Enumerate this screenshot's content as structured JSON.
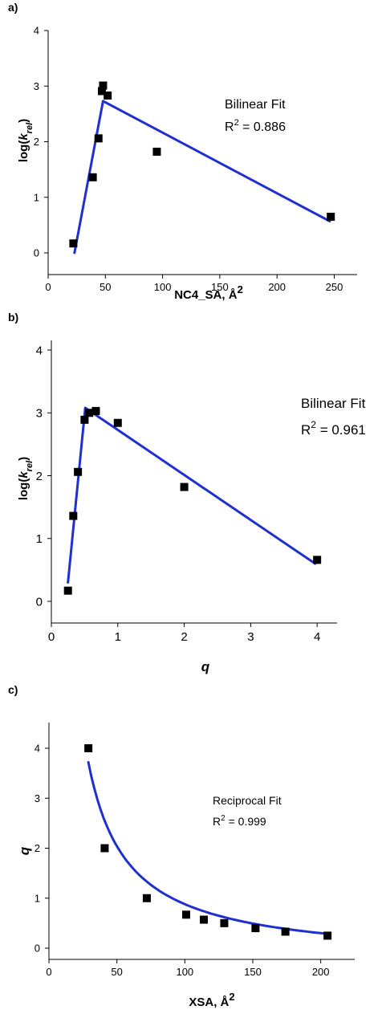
{
  "panels": [
    {
      "label": "a)",
      "annotation": {
        "title": "Bilinear Fit",
        "r2_prefix": "R",
        "r2_exp": "2",
        "r2_value": " = 0.886"
      },
      "xlabel": {
        "text": "NC4_SA, Å",
        "sup": "2"
      },
      "ylabel": {
        "prefix": "log(",
        "k": "k",
        "sub": "rel",
        "suffix": ")"
      }
    },
    {
      "label": "b)",
      "annotation": {
        "title": "Bilinear Fit",
        "r2_prefix": "R",
        "r2_exp": "2",
        "r2_value": " = 0.961"
      },
      "xlabel": {
        "text": "q",
        "sup": ""
      },
      "ylabel": {
        "prefix": "log(",
        "k": "k",
        "sub": "rel",
        "suffix": ")"
      }
    },
    {
      "label": "c)",
      "annotation": {
        "title": "Reciprocal Fit",
        "r2_prefix": "R",
        "r2_exp": "2",
        "r2_value": " = 0.999"
      },
      "xlabel": {
        "text": "XSA, Å",
        "sup": "2"
      },
      "ylabel": {
        "prefix": "",
        "k": "q",
        "sub": "",
        "suffix": ""
      }
    }
  ],
  "colors": {
    "fit_line": "#1f2fd0",
    "points": "#000000",
    "axis": "#000000"
  },
  "chart_data": [
    {
      "type": "scatter",
      "xlim": [
        0,
        270
      ],
      "ylim": [
        0,
        4
      ],
      "xticks": [
        0,
        50,
        100,
        150,
        200,
        250
      ],
      "yticks": [
        0,
        1,
        2,
        3,
        4
      ],
      "points": [
        [
          22,
          0.17
        ],
        [
          39,
          1.36
        ],
        [
          44,
          2.06
        ],
        [
          47,
          2.91
        ],
        [
          48,
          3.01
        ],
        [
          52,
          2.83
        ],
        [
          95,
          1.82
        ],
        [
          247,
          0.65
        ]
      ],
      "fit": {
        "name": "Bilinear Fit",
        "r2": 0.886,
        "line": [
          [
            23,
            0.0
          ],
          [
            48,
            2.73
          ],
          [
            246,
            0.57
          ]
        ]
      }
    },
    {
      "type": "scatter",
      "xlim": [
        0,
        4.3
      ],
      "ylim": [
        0,
        4
      ],
      "xticks": [
        0,
        1,
        2,
        3,
        4
      ],
      "yticks": [
        0,
        1,
        2,
        3,
        4
      ],
      "points": [
        [
          0.25,
          0.17
        ],
        [
          0.33,
          1.36
        ],
        [
          0.4,
          2.06
        ],
        [
          0.5,
          2.89
        ],
        [
          0.57,
          3.0
        ],
        [
          0.67,
          3.03
        ],
        [
          1.0,
          2.84
        ],
        [
          2.0,
          1.82
        ],
        [
          4.0,
          0.66
        ]
      ],
      "fit": {
        "name": "Bilinear Fit",
        "r2": 0.961,
        "line": [
          [
            0.25,
            0.3
          ],
          [
            0.51,
            3.08
          ],
          [
            3.97,
            0.6
          ]
        ]
      }
    },
    {
      "type": "scatter",
      "xlim": [
        0,
        225
      ],
      "ylim": [
        0,
        4
      ],
      "xticks": [
        0,
        50,
        100,
        150,
        200
      ],
      "yticks": [
        0,
        1,
        2,
        3,
        4
      ],
      "points": [
        [
          29,
          4.0
        ],
        [
          41,
          2.0
        ],
        [
          72,
          1.0
        ],
        [
          101,
          0.67
        ],
        [
          114,
          0.57
        ],
        [
          129,
          0.5
        ],
        [
          152,
          0.4
        ],
        [
          174,
          0.33
        ],
        [
          205,
          0.25
        ]
      ],
      "fit": {
        "name": "Reciprocal Fit",
        "r2": 0.999,
        "model": "reciprocal",
        "x_range": [
          29,
          205
        ],
        "a": 116,
        "b": -0.28
      }
    }
  ]
}
